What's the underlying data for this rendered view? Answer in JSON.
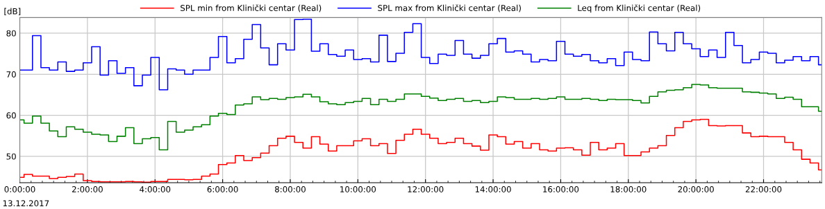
{
  "chart_data": {
    "type": "step",
    "ylabel": "[dB]",
    "annotations": [
      "13.12.2017"
    ],
    "x": [
      0,
      0.125,
      0.375,
      0.625,
      0.875,
      1.125,
      1.375,
      1.625,
      1.875,
      2.125,
      2.375,
      2.625,
      2.875,
      3.125,
      3.375,
      3.625,
      3.875,
      4.125,
      4.375,
      4.625,
      4.875,
      5.125,
      5.375,
      5.625,
      5.875,
      6.125,
      6.375,
      6.625,
      6.875,
      7.125,
      7.375,
      7.625,
      7.875,
      8.125,
      8.375,
      8.625,
      8.875,
      9.125,
      9.375,
      9.625,
      9.875,
      10.125,
      10.375,
      10.625,
      10.875,
      11.125,
      11.375,
      11.625,
      11.875,
      12.125,
      12.375,
      12.625,
      12.875,
      13.125,
      13.375,
      13.625,
      13.875,
      14.125,
      14.375,
      14.625,
      14.875,
      15.125,
      15.375,
      15.625,
      15.875,
      16.125,
      16.375,
      16.625,
      16.875,
      17.125,
      17.375,
      17.625,
      17.875,
      18.125,
      18.375,
      18.625,
      18.875,
      19.125,
      19.375,
      19.625,
      19.875,
      20.125,
      20.375,
      20.625,
      20.875,
      21.125,
      21.375,
      21.625,
      21.875,
      22.125,
      22.375,
      22.625,
      22.875,
      23.125,
      23.375,
      23.625
    ],
    "series": [
      {
        "name": "SPL min from Klinički centar (Real)",
        "color": "#ff0000",
        "values": [
          44.9,
          45.6,
          45.2,
          45.2,
          44.6,
          44.9,
          45.1,
          45.7,
          44.1,
          43.9,
          43.8,
          43.8,
          43.8,
          43.9,
          43.8,
          43.7,
          43.9,
          43.9,
          44.4,
          44.4,
          44.3,
          44.4,
          45.2,
          45.7,
          48.0,
          48.4,
          50.2,
          49.0,
          49.7,
          50.8,
          52.6,
          54.4,
          54.9,
          53.4,
          52.0,
          54.8,
          53.0,
          51.3,
          52.6,
          52.6,
          53.8,
          54.3,
          52.6,
          53.1,
          50.7,
          53.9,
          55.4,
          56.6,
          55.4,
          54.4,
          53.1,
          53.4,
          54.4,
          53.1,
          52.5,
          51.5,
          55.2,
          54.8,
          53.0,
          53.6,
          52.0,
          53.1,
          51.6,
          51.3,
          52.0,
          52.1,
          51.6,
          50.3,
          53.4,
          51.6,
          52.0,
          53.1,
          50.2,
          50.2,
          51.1,
          52.0,
          52.6,
          55.1,
          57.0,
          58.5,
          58.9,
          59.0,
          57.5,
          57.4,
          57.5,
          57.5,
          55.7,
          54.8,
          54.9,
          54.8,
          54.8,
          53.4,
          51.6,
          49.3,
          48.4,
          46.7
        ]
      },
      {
        "name": "SPL max from Klinički centar (Real)",
        "color": "#0000ff",
        "values": [
          71.0,
          71.0,
          79.4,
          71.6,
          71.0,
          73.0,
          70.7,
          71.0,
          72.8,
          76.7,
          69.8,
          73.3,
          70.2,
          71.6,
          67.2,
          69.8,
          74.1,
          66.2,
          71.3,
          71.0,
          70.0,
          71.0,
          71.0,
          74.1,
          79.2,
          72.8,
          73.8,
          78.5,
          82.1,
          76.4,
          72.3,
          77.4,
          75.9,
          83.3,
          83.4,
          75.6,
          77.4,
          74.8,
          74.4,
          75.9,
          73.6,
          73.8,
          73.0,
          79.5,
          73.1,
          75.1,
          80.2,
          82.3,
          74.1,
          72.6,
          74.9,
          74.6,
          78.2,
          74.9,
          73.9,
          74.6,
          77.4,
          78.7,
          75.4,
          75.7,
          74.9,
          73.0,
          73.6,
          73.3,
          78.0,
          74.9,
          74.4,
          74.8,
          73.3,
          72.8,
          73.8,
          72.1,
          75.4,
          73.6,
          73.3,
          80.3,
          77.4,
          75.7,
          80.2,
          77.4,
          76.2,
          74.3,
          75.9,
          74.1,
          80.2,
          77.0,
          72.8,
          73.6,
          75.4,
          75.1,
          72.8,
          73.4,
          74.3,
          73.3,
          74.3,
          72.3
        ]
      },
      {
        "name": "Leq from Klinički centar (Real)",
        "color": "#008000",
        "values": [
          58.9,
          58.1,
          59.8,
          58.1,
          56.2,
          54.8,
          57.2,
          56.6,
          55.9,
          55.4,
          55.2,
          53.6,
          54.9,
          57.0,
          53.1,
          54.3,
          54.6,
          51.6,
          58.5,
          55.9,
          56.4,
          57.2,
          57.7,
          59.8,
          60.5,
          60.2,
          62.5,
          62.8,
          64.5,
          63.8,
          64.1,
          63.9,
          64.3,
          64.5,
          65.1,
          64.5,
          63.3,
          62.8,
          62.6,
          63.1,
          63.4,
          64.1,
          62.6,
          63.9,
          63.4,
          63.9,
          65.2,
          65.2,
          64.6,
          64.2,
          63.6,
          63.9,
          64.1,
          63.4,
          63.6,
          63.1,
          63.4,
          64.5,
          64.3,
          63.9,
          63.9,
          64.1,
          63.9,
          64.1,
          64.5,
          63.9,
          63.9,
          64.1,
          63.9,
          63.6,
          63.9,
          63.8,
          63.8,
          63.6,
          63.0,
          64.6,
          65.7,
          66.1,
          66.2,
          66.7,
          67.5,
          67.4,
          66.7,
          66.6,
          66.6,
          66.6,
          65.7,
          65.6,
          65.4,
          65.2,
          64.1,
          64.4,
          63.9,
          62.1,
          62.1,
          61.0
        ]
      }
    ],
    "xlim": [
      0,
      23.72
    ],
    "ylim": [
      43.6,
      83.8
    ],
    "xticks": [
      {
        "value": 0,
        "label": "0:00:00"
      },
      {
        "value": 2,
        "label": "2:00:00"
      },
      {
        "value": 4,
        "label": "4:00:00"
      },
      {
        "value": 6,
        "label": "6:00:00"
      },
      {
        "value": 8,
        "label": "8:00:00"
      },
      {
        "value": 10,
        "label": "10:00:00"
      },
      {
        "value": 12,
        "label": "12:00:00"
      },
      {
        "value": 14,
        "label": "14:00:00"
      },
      {
        "value": 16,
        "label": "16:00:00"
      },
      {
        "value": 18,
        "label": "18:00:00"
      },
      {
        "value": 20,
        "label": "20:00:00"
      },
      {
        "value": 22,
        "label": "22:00:00"
      }
    ],
    "yticks": [
      50,
      60,
      70,
      80
    ],
    "grid": true,
    "legend": "top"
  }
}
